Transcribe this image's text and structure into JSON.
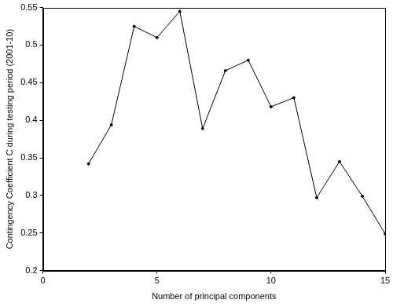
{
  "chart_data": {
    "type": "line",
    "x_label": "Number of principal components",
    "y_label": "Contingency Coefficient C during testing period (2001-10)",
    "x": [
      2,
      3,
      4,
      5,
      6,
      7,
      8,
      9,
      10,
      11,
      12,
      13,
      14,
      15
    ],
    "values": [
      0.342,
      0.394,
      0.525,
      0.51,
      0.545,
      0.389,
      0.466,
      0.48,
      0.418,
      0.43,
      0.297,
      0.345,
      0.299,
      0.249
    ],
    "color": "#000000",
    "marker": "circle",
    "line_style": "solid",
    "xlim": [
      0,
      15
    ],
    "xticks": [
      0,
      5,
      10,
      15
    ],
    "ylim": [
      0.2,
      0.55
    ],
    "yticks": [
      0.2,
      0.25,
      0.3,
      0.35,
      0.4,
      0.45,
      0.5,
      0.55
    ],
    "grid": false
  }
}
